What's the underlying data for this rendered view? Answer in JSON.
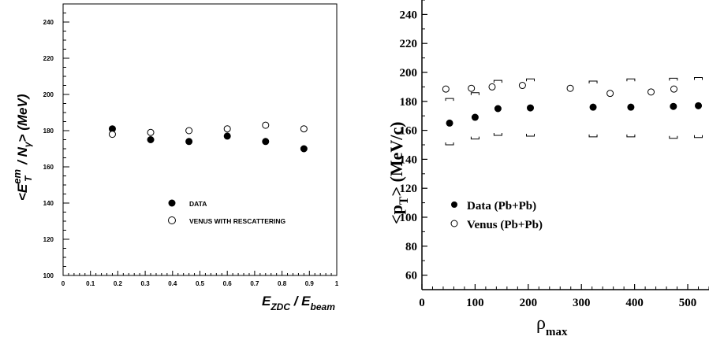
{
  "chart_data": [
    {
      "type": "scatter",
      "xlabel_main": "E",
      "xlabel_sub1": "ZDC",
      "xlabel_mid": " / E",
      "xlabel_sub2": "beam",
      "ylabel_pre": "<E",
      "ylabel_sup": "em",
      "ylabel_sub": "T",
      "ylabel_mid": " / N",
      "ylabel_sub2": "γ",
      "ylabel_post": "> (MeV)",
      "xlim": [
        0,
        1
      ],
      "ylim": [
        100,
        250
      ],
      "xticks": [
        "0",
        "0.1",
        "0.2",
        "0.3",
        "0.4",
        "0.5",
        "0.6",
        "0.7",
        "0.8",
        "0.9",
        "1"
      ],
      "yticks": [
        "100",
        "120",
        "140",
        "160",
        "180",
        "200",
        "220",
        "240"
      ],
      "legend": [
        "DATA",
        "VENUS WITH RESCATTERING"
      ],
      "series": [
        {
          "name": "DATA",
          "marker": "filled",
          "x": [
            0.18,
            0.32,
            0.46,
            0.6,
            0.74,
            0.88
          ],
          "y": [
            181,
            175,
            174,
            177,
            174,
            170
          ]
        },
        {
          "name": "VENUS WITH RESCATTERING",
          "marker": "open",
          "x": [
            0.18,
            0.32,
            0.46,
            0.6,
            0.74,
            0.88
          ],
          "y": [
            178,
            179,
            180,
            181,
            183,
            181
          ]
        }
      ]
    },
    {
      "type": "scatter",
      "xlabel": "ρ",
      "xlabel_sub": "max",
      "ylabel_pre": "<p",
      "ylabel_sub": "T",
      "ylabel_post": "> (MeV/c)",
      "xlim": [
        0,
        540
      ],
      "ylim": [
        50,
        250
      ],
      "xticks": [
        "0",
        "100",
        "200",
        "300",
        "400",
        "500"
      ],
      "yticks": [
        "60",
        "80",
        "100",
        "120",
        "140",
        "160",
        "180",
        "200",
        "220",
        "240"
      ],
      "legend": [
        "Data (Pb+Pb)",
        "Venus (Pb+Pb)"
      ],
      "series": [
        {
          "name": "Data (Pb+Pb)",
          "marker": "filled",
          "x": [
            52,
            100,
            143,
            204,
            322,
            393,
            473,
            520
          ],
          "y": [
            165,
            169,
            175,
            175.5,
            176,
            176,
            176.5,
            177
          ],
          "sys_low": [
            150,
            154,
            156.5,
            156,
            155.5,
            155.5,
            154.5,
            155
          ],
          "sys_high": [
            182,
            186,
            194.5,
            195.5,
            194,
            195.5,
            196,
            196.5
          ]
        },
        {
          "name": "Venus (Pb+Pb)",
          "marker": "open",
          "x": [
            45,
            93,
            132,
            189,
            279,
            354,
            431,
            474
          ],
          "y": [
            188.5,
            189,
            190,
            191,
            189,
            185.5,
            186.5,
            188.5
          ]
        }
      ]
    }
  ]
}
